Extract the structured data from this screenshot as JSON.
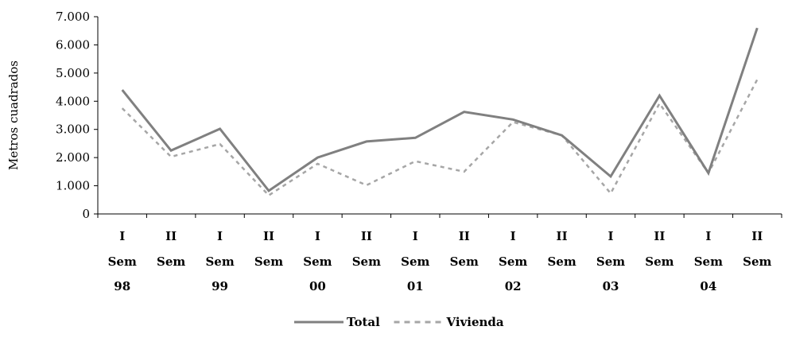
{
  "chart_data": {
    "type": "line",
    "ylabel": "Metros cuadrados",
    "xlabel": "",
    "ylim": [
      0,
      7000
    ],
    "yticks": [
      0,
      1000,
      2000,
      3000,
      4000,
      5000,
      6000,
      7000
    ],
    "ytick_labels": [
      "0",
      "1.000",
      "2.000",
      "3.000",
      "4.000",
      "5.000",
      "6.000",
      "7.000"
    ],
    "categories": [
      [
        "I",
        "Sem",
        "98"
      ],
      [
        "II",
        "Sem",
        ""
      ],
      [
        "I",
        "Sem",
        "99"
      ],
      [
        "II",
        "Sem",
        ""
      ],
      [
        "I",
        "Sem",
        "00"
      ],
      [
        "II",
        "Sem",
        ""
      ],
      [
        "I",
        "Sem",
        "01"
      ],
      [
        "II",
        "Sem",
        ""
      ],
      [
        "I",
        "Sem",
        "02"
      ],
      [
        "II",
        "Sem",
        ""
      ],
      [
        "I",
        "Sem",
        "03"
      ],
      [
        "II",
        "Sem",
        ""
      ],
      [
        "I",
        "Sem",
        "04"
      ],
      [
        "II",
        "Sem",
        ""
      ]
    ],
    "series": [
      {
        "name": "Total",
        "style": "solid",
        "color": "#808080",
        "values": [
          4400,
          2250,
          3020,
          820,
          2000,
          2570,
          2700,
          3620,
          3350,
          2790,
          1330,
          4200,
          1450,
          6600
        ]
      },
      {
        "name": "Vivienda",
        "style": "dashed",
        "color": "#a6a6a6",
        "values": [
          3750,
          2030,
          2480,
          660,
          1780,
          1020,
          1870,
          1500,
          3260,
          2790,
          730,
          3920,
          1450,
          4770
        ]
      }
    ],
    "grid": false,
    "legend": "bottom-center"
  }
}
